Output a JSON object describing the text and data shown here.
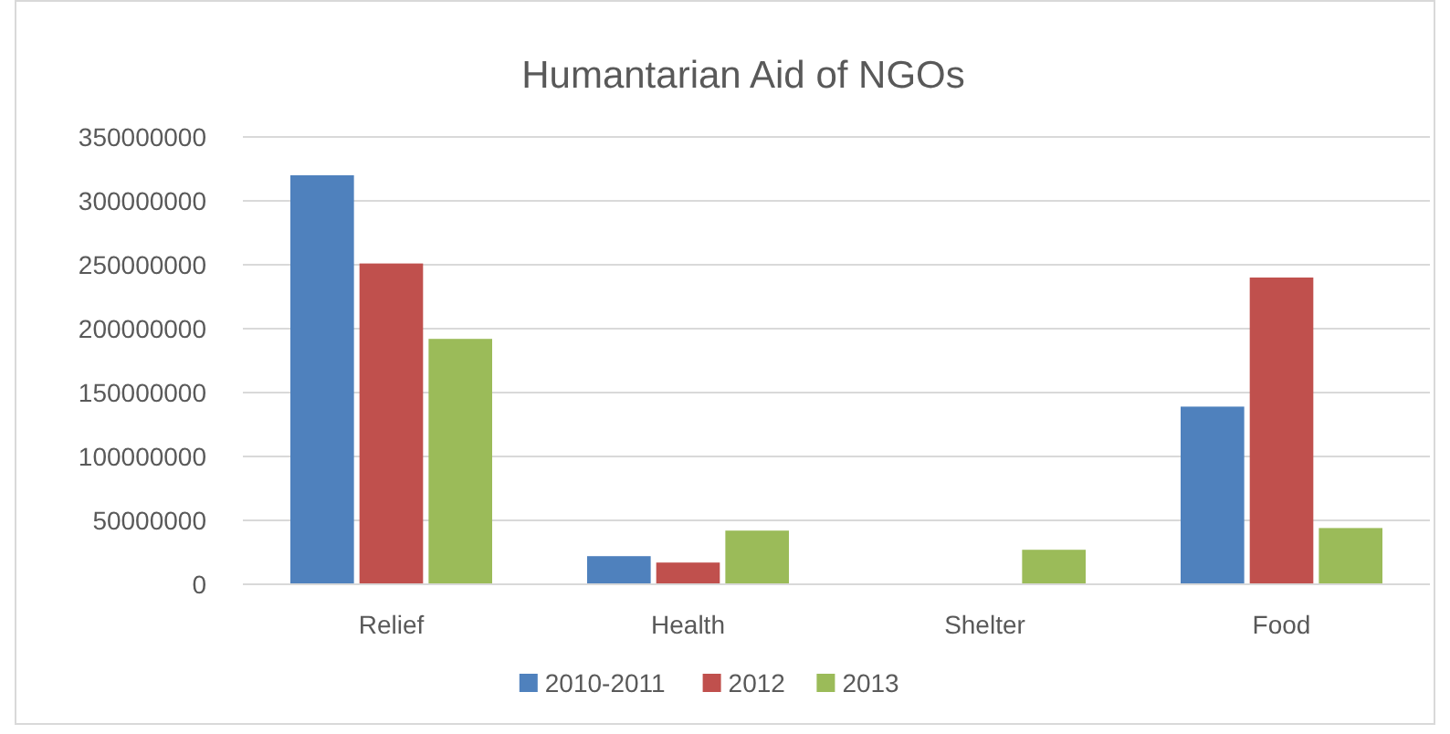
{
  "chart_data": {
    "type": "bar",
    "title": "Humantarian Aid of NGOs",
    "categories": [
      "Relief",
      "Health",
      "Shelter",
      "Food"
    ],
    "series": [
      {
        "name": "2010-2011",
        "color": "#4f81bd",
        "values": [
          320000000,
          22000000,
          null,
          139000000
        ]
      },
      {
        "name": "2012",
        "color": "#c0504d",
        "values": [
          251000000,
          17000000,
          null,
          240000000
        ]
      },
      {
        "name": "2013",
        "color": "#9bbb59",
        "values": [
          192000000,
          42000000,
          27000000,
          44000000
        ]
      }
    ],
    "ylim": [
      0,
      350000000
    ],
    "yticks": [
      0,
      50000000,
      100000000,
      150000000,
      200000000,
      250000000,
      300000000,
      350000000
    ],
    "grid": "y",
    "legend": "bottom"
  }
}
